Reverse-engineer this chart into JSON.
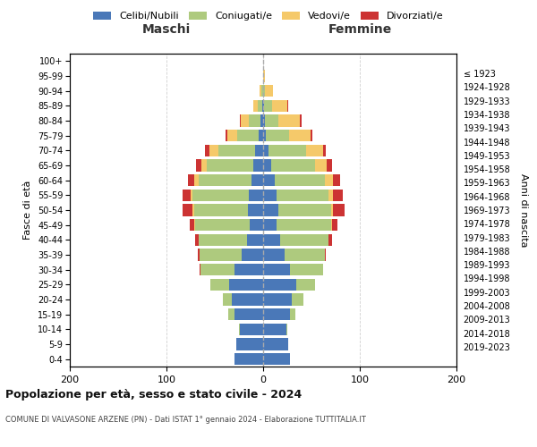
{
  "age_groups": [
    "100+",
    "95-99",
    "90-94",
    "85-89",
    "80-84",
    "75-79",
    "70-74",
    "65-69",
    "60-64",
    "55-59",
    "50-54",
    "45-49",
    "40-44",
    "35-39",
    "30-34",
    "25-29",
    "20-24",
    "15-19",
    "10-14",
    "5-9",
    "0-4"
  ],
  "birth_years": [
    "≤ 1923",
    "1924-1928",
    "1929-1933",
    "1934-1938",
    "1939-1943",
    "1944-1948",
    "1949-1953",
    "1954-1958",
    "1959-1963",
    "1964-1968",
    "1969-1973",
    "1974-1978",
    "1979-1983",
    "1984-1988",
    "1989-1993",
    "1994-1998",
    "1999-2003",
    "2004-2008",
    "2009-2013",
    "2014-2018",
    "2019-2023"
  ],
  "colors": {
    "celibe": "#4A78B8",
    "coniugato": "#AECA7E",
    "vedovo": "#F5C96A",
    "divorziato": "#CC3333"
  },
  "maschi": {
    "celibe": [
      0,
      0,
      0,
      1,
      3,
      5,
      8,
      10,
      12,
      15,
      16,
      14,
      17,
      22,
      30,
      35,
      32,
      30,
      24,
      28,
      30
    ],
    "coniugato": [
      0,
      0,
      2,
      5,
      12,
      22,
      38,
      48,
      55,
      58,
      55,
      56,
      50,
      44,
      35,
      20,
      10,
      6,
      1,
      0,
      0
    ],
    "vedovo": [
      0,
      0,
      2,
      4,
      8,
      10,
      10,
      6,
      4,
      2,
      2,
      1,
      0,
      0,
      0,
      0,
      0,
      0,
      0,
      0,
      0
    ],
    "divorziato": [
      0,
      0,
      0,
      0,
      1,
      2,
      4,
      5,
      7,
      8,
      10,
      5,
      3,
      2,
      1,
      0,
      0,
      0,
      0,
      0,
      0
    ]
  },
  "femmine": {
    "nubile": [
      0,
      0,
      0,
      1,
      2,
      3,
      6,
      8,
      12,
      14,
      16,
      14,
      18,
      22,
      28,
      34,
      30,
      28,
      24,
      26,
      28
    ],
    "coniugata": [
      0,
      0,
      2,
      8,
      14,
      24,
      38,
      46,
      52,
      54,
      54,
      56,
      50,
      42,
      34,
      20,
      12,
      5,
      1,
      0,
      0
    ],
    "vedova": [
      0,
      2,
      8,
      16,
      22,
      22,
      18,
      12,
      8,
      4,
      2,
      1,
      0,
      0,
      0,
      0,
      0,
      0,
      0,
      0,
      0
    ],
    "divorziata": [
      0,
      0,
      0,
      1,
      2,
      2,
      3,
      5,
      8,
      10,
      12,
      6,
      3,
      1,
      0,
      0,
      0,
      0,
      0,
      0,
      0
    ]
  },
  "xlim": 200,
  "title": "Popolazione per età, sesso e stato civile - 2024",
  "subtitle": "COMUNE DI VALVASONE ARZENE (PN) - Dati ISTAT 1° gennaio 2024 - Elaborazione TUTTITALIA.IT",
  "xlabel_left": "Maschi",
  "xlabel_right": "Femmine",
  "ylabel": "Fasce di età",
  "ylabel_right": "Anni di nascita",
  "bg_color": "#FFFFFF",
  "plot_bg_color": "#FFFFFF",
  "grid_color": "#BBBBBB"
}
